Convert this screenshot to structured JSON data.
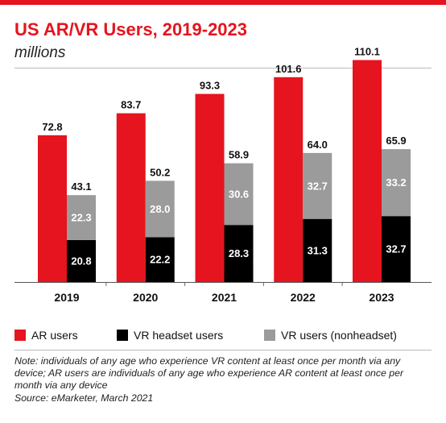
{
  "header": {
    "title": "US AR/VR Users, 2019-2023",
    "subtitle": "millions"
  },
  "colors": {
    "accent": "#e5141e",
    "ar": "#e5141e",
    "vr_headset": "#000000",
    "vr_nonheadset": "#9b9b9b"
  },
  "chart_data": {
    "type": "bar",
    "title": "US AR/VR Users, 2019-2023",
    "subtitle": "millions",
    "categories": [
      "2019",
      "2020",
      "2021",
      "2022",
      "2023"
    ],
    "ylim": [
      0,
      115
    ],
    "grid": false,
    "legend_position": "bottom",
    "series": [
      {
        "name": "AR users",
        "color": "#e5141e",
        "label_color": "#111111",
        "values": [
          72.8,
          83.7,
          93.3,
          101.6,
          110.1
        ]
      },
      {
        "name": "VR headset users",
        "color": "#000000",
        "label_color": "#ffffff",
        "stack": "vr",
        "values": [
          20.8,
          22.2,
          28.3,
          31.3,
          32.7
        ]
      },
      {
        "name": "VR users (nonheadset)",
        "color": "#9b9b9b",
        "label_color": "#ffffff",
        "stack": "vr",
        "values": [
          22.3,
          28.0,
          30.6,
          32.7,
          33.2
        ]
      }
    ],
    "vr_totals": [
      43.1,
      50.2,
      58.9,
      64.0,
      65.9
    ]
  },
  "legend": [
    {
      "label": "AR users",
      "color": "#e5141e"
    },
    {
      "label": "VR headset users",
      "color": "#000000"
    },
    {
      "label": "VR users (nonheadset)",
      "color": "#9b9b9b"
    }
  ],
  "footer": {
    "note": "Note: individuals of any age who experience VR content at least once per month via any device; AR users are individuals of any age who experience AR content at least once per month via any device",
    "source": "Source: eMarketer, March 2021"
  }
}
